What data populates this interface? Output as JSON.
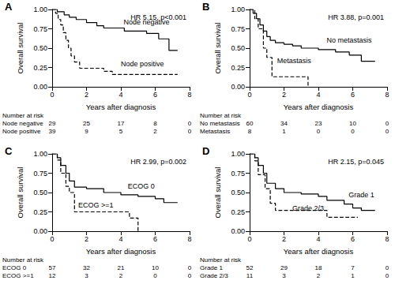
{
  "chart_data": [
    {
      "type": "line",
      "title": "A",
      "annotations": [
        "HR 5.15, p<0.001"
      ],
      "xlabel": "Years after diagnosis",
      "ylabel": "Overall survival",
      "xlim": [
        0,
        8
      ],
      "xticks": [
        0,
        2,
        4,
        6,
        8
      ],
      "ylim": [
        0,
        1
      ],
      "yticks": [
        {
          "value": 0,
          "label": "0.00"
        },
        {
          "value": 0.25,
          "label": "0.25"
        },
        {
          "value": 0.5,
          "label": "0.50"
        },
        {
          "value": 0.75,
          "label": "0.75"
        },
        {
          "value": 1,
          "label": "1.00"
        }
      ],
      "grid": false,
      "series": [
        {
          "name": "Node negative",
          "color": "#000000",
          "line_style": "solid",
          "x": [
            0,
            0.3,
            0.7,
            1.0,
            1.4,
            2.0,
            2.6,
            3.0,
            4.2,
            5.5,
            6.2,
            6.8,
            7.3
          ],
          "values": [
            1,
            0.97,
            0.93,
            0.9,
            0.87,
            0.83,
            0.79,
            0.76,
            0.72,
            0.69,
            0.62,
            0.47,
            0.47
          ]
        },
        {
          "name": "Node positive",
          "color": "#000000",
          "line_style": "dashed",
          "x": [
            0,
            0.2,
            0.35,
            0.5,
            0.65,
            0.8,
            0.95,
            1.1,
            1.3,
            1.6,
            3.0,
            3.5,
            7.3
          ],
          "values": [
            1,
            0.95,
            0.87,
            0.8,
            0.7,
            0.6,
            0.5,
            0.4,
            0.32,
            0.24,
            0.2,
            0.16,
            0.16
          ]
        }
      ],
      "risk_table": {
        "title": "Number at risk",
        "times": [
          0,
          2,
          4,
          6,
          8
        ],
        "rows": [
          {
            "name": "Node negative",
            "counts": [
              29,
              25,
              17,
              8,
              0
            ]
          },
          {
            "name": "Node positive",
            "counts": [
              39,
              9,
              5,
              2,
              0
            ]
          }
        ]
      }
    },
    {
      "type": "line",
      "title": "B",
      "annotations": [
        "HR 3.88, p=0.001"
      ],
      "xlabel": "Years after diagnosis",
      "ylabel": "Overall survival",
      "xlim": [
        0,
        8
      ],
      "xticks": [
        0,
        2,
        4,
        6,
        8
      ],
      "ylim": [
        0,
        1
      ],
      "yticks": [
        {
          "value": 0,
          "label": "0.00"
        },
        {
          "value": 0.25,
          "label": "0.25"
        },
        {
          "value": 0.5,
          "label": "0.50"
        },
        {
          "value": 0.75,
          "label": "0.75"
        },
        {
          "value": 1,
          "label": "1.00"
        }
      ],
      "grid": false,
      "series": [
        {
          "name": "No metastasis",
          "color": "#000000",
          "line_style": "solid",
          "x": [
            0,
            0.2,
            0.4,
            0.6,
            0.8,
            1.0,
            1.2,
            1.5,
            2.0,
            2.5,
            3.0,
            4.0,
            5.0,
            5.8,
            6.5,
            7.3
          ],
          "values": [
            1,
            0.95,
            0.88,
            0.8,
            0.72,
            0.65,
            0.6,
            0.57,
            0.55,
            0.53,
            0.5,
            0.48,
            0.45,
            0.41,
            0.33,
            0.33
          ]
        },
        {
          "name": "Metastasis",
          "color": "#000000",
          "line_style": "dashed",
          "x": [
            0,
            0.3,
            0.5,
            0.8,
            1.0,
            1.3,
            3.4
          ],
          "values": [
            1,
            0.88,
            0.75,
            0.5,
            0.38,
            0.13,
            0.0
          ]
        }
      ],
      "risk_table": {
        "title": "Number at risk",
        "times": [
          0,
          2,
          4,
          6,
          8
        ],
        "rows": [
          {
            "name": "No metastasis",
            "counts": [
              60,
              34,
              23,
              10,
              0
            ]
          },
          {
            "name": "Metastasis",
            "counts": [
              8,
              1,
              0,
              0,
              0
            ]
          }
        ]
      }
    },
    {
      "type": "line",
      "title": "C",
      "annotations": [
        "HR 2.99, p=0.002"
      ],
      "xlabel": "Years after diagnosis",
      "ylabel": "Overall survival",
      "xlim": [
        0,
        8
      ],
      "xticks": [
        0,
        2,
        4,
        6,
        8
      ],
      "ylim": [
        0,
        1
      ],
      "yticks": [
        {
          "value": 0,
          "label": "0.00"
        },
        {
          "value": 0.25,
          "label": "0.25"
        },
        {
          "value": 0.5,
          "label": "0.50"
        },
        {
          "value": 0.75,
          "label": "0.75"
        },
        {
          "value": 1,
          "label": "1.00"
        }
      ],
      "grid": false,
      "series": [
        {
          "name": "ECOG 0",
          "color": "#000000",
          "line_style": "solid",
          "x": [
            0,
            0.3,
            0.5,
            0.8,
            1.0,
            1.3,
            2.0,
            3.0,
            4.0,
            5.0,
            6.0,
            6.5,
            7.3
          ],
          "values": [
            1,
            0.95,
            0.85,
            0.75,
            0.65,
            0.57,
            0.55,
            0.5,
            0.47,
            0.45,
            0.42,
            0.37,
            0.37
          ]
        },
        {
          "name": "ECOG >=1",
          "color": "#000000",
          "line_style": "dashed",
          "x": [
            0,
            0.3,
            0.5,
            0.8,
            1.0,
            1.3,
            4.5,
            5.0
          ],
          "values": [
            1,
            0.92,
            0.75,
            0.58,
            0.5,
            0.25,
            0.17,
            0.0
          ]
        }
      ],
      "risk_table": {
        "title": "Number at risk",
        "times": [
          0,
          2,
          4,
          6,
          8
        ],
        "rows": [
          {
            "name": "ECOG 0",
            "counts": [
              57,
              32,
              21,
              10,
              0
            ]
          },
          {
            "name": "ECOG >=1",
            "counts": [
              12,
              3,
              2,
              0,
              0
            ]
          }
        ]
      }
    },
    {
      "type": "line",
      "title": "D",
      "annotations": [
        "HR 2.15, p=0.045"
      ],
      "xlabel": "Years after diagnosis",
      "ylabel": "Overall survival",
      "xlim": [
        0,
        8
      ],
      "xticks": [
        0,
        2,
        4,
        6,
        8
      ],
      "ylim": [
        0,
        1
      ],
      "yticks": [
        {
          "value": 0,
          "label": "0.00"
        },
        {
          "value": 0.25,
          "label": "0.25"
        },
        {
          "value": 0.5,
          "label": "0.50"
        },
        {
          "value": 0.75,
          "label": "0.75"
        },
        {
          "value": 1,
          "label": "1.00"
        }
      ],
      "grid": false,
      "series": [
        {
          "name": "Grade 1",
          "color": "#000000",
          "line_style": "solid",
          "x": [
            0,
            0.3,
            0.5,
            0.8,
            1.0,
            1.5,
            2.0,
            3.0,
            4.0,
            4.5,
            5.5,
            6.0,
            6.5,
            7.3
          ],
          "values": [
            1,
            0.95,
            0.85,
            0.75,
            0.62,
            0.55,
            0.5,
            0.48,
            0.45,
            0.4,
            0.35,
            0.3,
            0.27,
            0.27
          ]
        },
        {
          "name": "Grade 2/3",
          "color": "#000000",
          "line_style": "dashed",
          "x": [
            0,
            0.3,
            0.5,
            0.9,
            1.2,
            1.5,
            4.5,
            6.3
          ],
          "values": [
            1,
            0.91,
            0.73,
            0.55,
            0.36,
            0.27,
            0.18,
            0.18
          ]
        }
      ],
      "risk_table": {
        "title": "Number at risk",
        "times": [
          0,
          2,
          4,
          6,
          8
        ],
        "rows": [
          {
            "name": "Grade 1",
            "counts": [
              52,
              29,
              18,
              7,
              0
            ]
          },
          {
            "name": "Grade 2/3",
            "counts": [
              11,
              3,
              2,
              1,
              0
            ]
          }
        ]
      }
    }
  ]
}
